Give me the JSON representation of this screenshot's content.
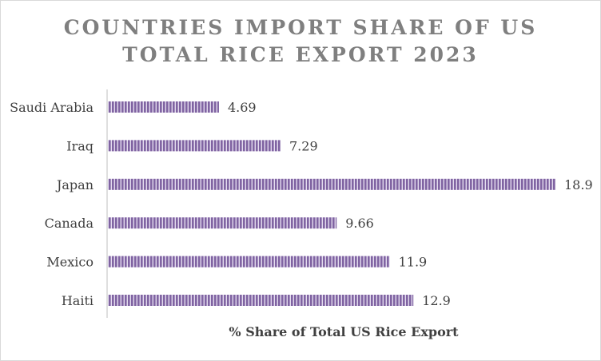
{
  "chart_data": {
    "type": "bar",
    "orientation": "horizontal",
    "title_lines": [
      "COUNTRIES IMPORT SHARE OF US",
      "TOTAL RICE EXPORT 2023"
    ],
    "xlabel": "% Share of Total US Rice Export",
    "ylabel": "",
    "categories": [
      "Saudi Arabia",
      "Iraq",
      "Japan",
      "Canada",
      "Mexico",
      "Haiti"
    ],
    "values": [
      4.69,
      7.29,
      18.9,
      9.66,
      11.9,
      12.9
    ],
    "value_labels": [
      "4.69",
      "7.29",
      "18.9",
      "9.66",
      "11.9",
      "12.9"
    ],
    "xlim": [
      0,
      18.9
    ],
    "grid": false,
    "legend": "none",
    "bar_color": "#8064a2",
    "bar_stripe_color": "#e4dcef"
  }
}
